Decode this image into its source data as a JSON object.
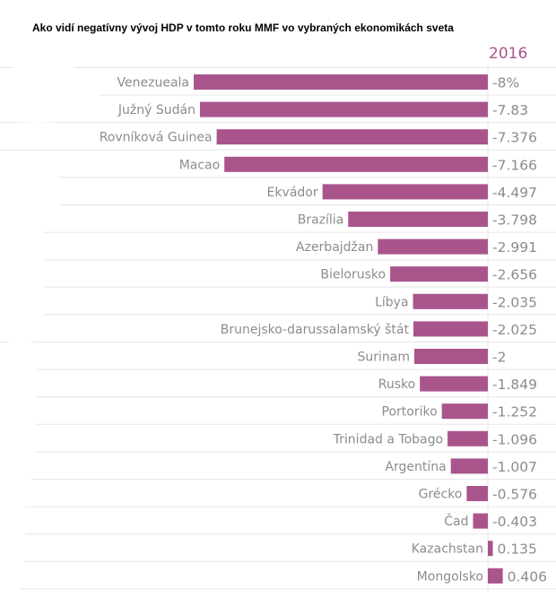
{
  "title": "Ako vidí negatívny vývoj HDP v tomto roku MMF vo vybraných ekonomikách sveta",
  "year_label": "2016",
  "colors": {
    "bar": "#a9558c",
    "grid": "#e6e6e6",
    "label": "#8c8c8c",
    "year": "#a9558c"
  },
  "chart_data": {
    "type": "bar",
    "orientation": "horizontal",
    "title": "Ako vidí negatívny vývoj HDP v tomto roku MMF vo vybraných ekonomikách sveta",
    "series": [
      {
        "name": "2016",
        "values": [
          -8,
          -7.83,
          -7.376,
          -7.166,
          -4.497,
          -3.798,
          -2.991,
          -2.656,
          -2.035,
          -2.025,
          -2,
          -1.849,
          -1.252,
          -1.096,
          -1.007,
          -0.576,
          -0.403,
          0.135,
          0.406
        ]
      }
    ],
    "categories": [
      "Venezueala",
      "Južný Sudán",
      "Rovníková Guinea",
      "Macao",
      "Ekvádor",
      "Brazília",
      "Azerbajdžan",
      "Bielorusko",
      "Líbya",
      "Brunejsko-darussalamský štát",
      "Surinam",
      "Rusko",
      "Portoriko",
      "Trinidad a Tobago",
      "Argentína",
      "Grécko",
      "Čad",
      "Kazachstan",
      "Mongolsko"
    ],
    "value_labels": [
      "-8%",
      "-7.83",
      "-7.376",
      "-7.166",
      "-4.497",
      "-3.798",
      "-2.991",
      "-2.656",
      "-2.035",
      "-2.025",
      "-2",
      "-1.849",
      "-1.252",
      "-1.096",
      "-1.007",
      "-0.576",
      "-0.403",
      "0.135",
      "0.406"
    ],
    "xlim": [
      -8,
      0.406
    ],
    "grid": true,
    "legend": "none"
  }
}
